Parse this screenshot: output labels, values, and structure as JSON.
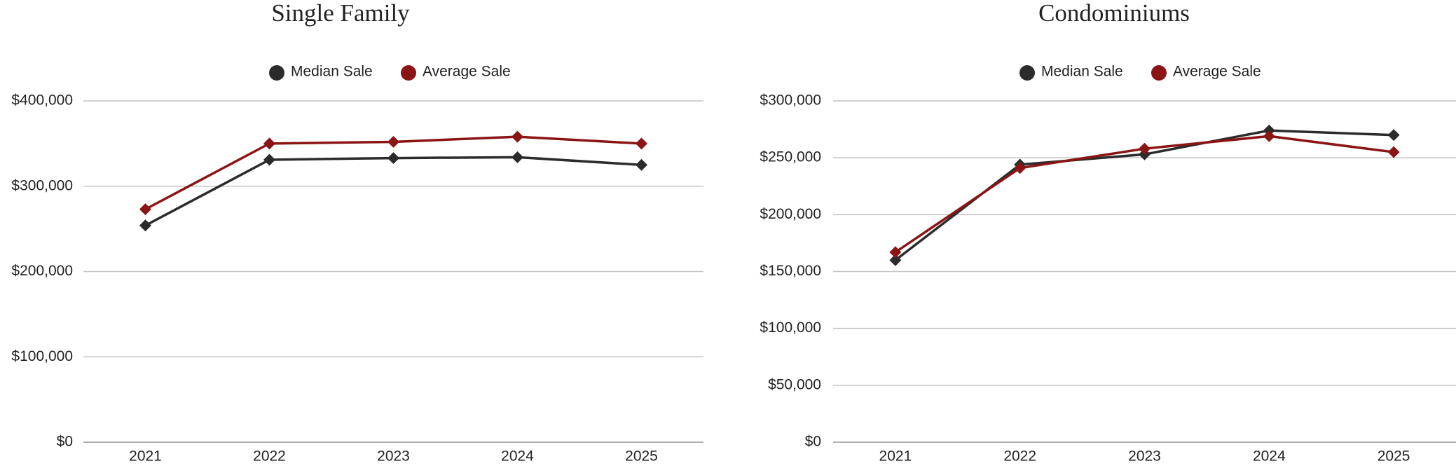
{
  "chart_data": [
    {
      "type": "line",
      "title": "Single Family",
      "categories": [
        "2021",
        "2022",
        "2023",
        "2024",
        "2025"
      ],
      "series": [
        {
          "name": "Median Sale",
          "color": "#2b2b2b",
          "values": [
            254000,
            331000,
            333000,
            334000,
            325000
          ]
        },
        {
          "name": "Average Sale",
          "color": "#8b1414",
          "values": [
            273000,
            350000,
            352000,
            358000,
            350000
          ]
        }
      ],
      "ylim": [
        0,
        400000
      ],
      "yticks": [
        {
          "value": 0,
          "label": "$0"
        },
        {
          "value": 100000,
          "label": "$100,000"
        },
        {
          "value": 200000,
          "label": "$200,000"
        },
        {
          "value": 300000,
          "label": "$300,000"
        },
        {
          "value": 400000,
          "label": "$400,000"
        }
      ],
      "grid": true,
      "legend": "top"
    },
    {
      "type": "line",
      "title": "Condominiums",
      "categories": [
        "2021",
        "2022",
        "2023",
        "2024",
        "2025"
      ],
      "series": [
        {
          "name": "Median Sale",
          "color": "#2b2b2b",
          "values": [
            160000,
            244000,
            253000,
            274000,
            270000
          ]
        },
        {
          "name": "Average Sale",
          "color": "#8b1414",
          "values": [
            167000,
            241000,
            258000,
            269000,
            255000
          ]
        }
      ],
      "ylim": [
        0,
        300000
      ],
      "yticks": [
        {
          "value": 0,
          "label": "$0"
        },
        {
          "value": 50000,
          "label": "$50,000"
        },
        {
          "value": 100000,
          "label": "$100,000"
        },
        {
          "value": 150000,
          "label": "$150,000"
        },
        {
          "value": 200000,
          "label": "$200,000"
        },
        {
          "value": 250000,
          "label": "$250,000"
        },
        {
          "value": 300000,
          "label": "$300,000"
        }
      ],
      "grid": true,
      "legend": "top"
    }
  ]
}
